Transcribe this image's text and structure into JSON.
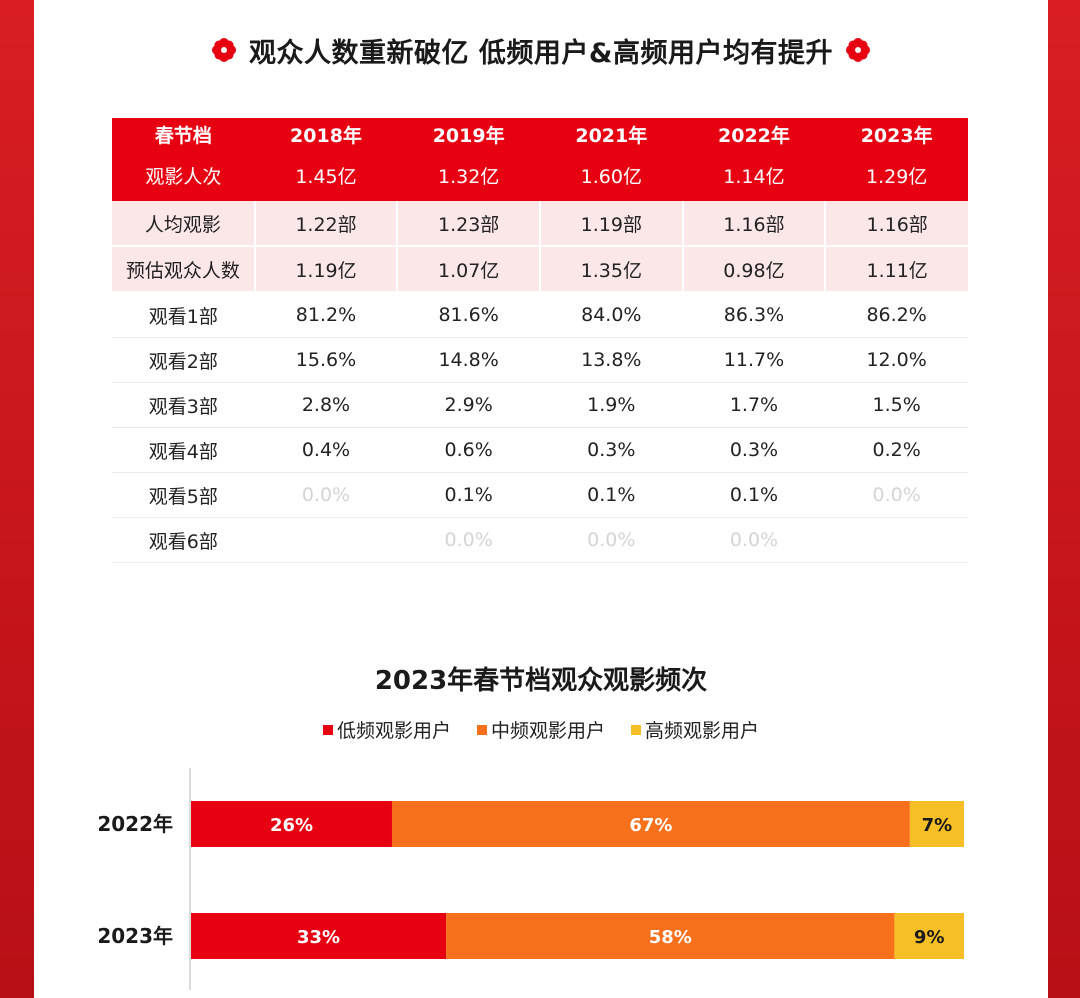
{
  "title": "观众人数重新破亿 低频用户&高频用户均有提升",
  "colors": {
    "red": "#e60012",
    "orange": "#f7711d",
    "yellow": "#f7bf26",
    "pink_row": "#fbe7e8",
    "frame": "#c8161d"
  },
  "table": {
    "header": [
      "春节档",
      "2018年",
      "2019年",
      "2021年",
      "2022年",
      "2023年"
    ],
    "rows": [
      {
        "label": "观影人次",
        "values": [
          "1.45亿",
          "1.32亿",
          "1.60亿",
          "1.14亿",
          "1.29亿"
        ],
        "style": "header"
      },
      {
        "label": "人均观影",
        "values": [
          "1.22部",
          "1.23部",
          "1.19部",
          "1.16部",
          "1.16部"
        ],
        "style": "pink"
      },
      {
        "label": "预估观众人数",
        "values": [
          "1.19亿",
          "1.07亿",
          "1.35亿",
          "0.98亿",
          "1.11亿"
        ],
        "style": "pink"
      },
      {
        "label": "观看1部",
        "values": [
          "81.2%",
          "81.6%",
          "84.0%",
          "86.3%",
          "86.2%"
        ],
        "style": "plain"
      },
      {
        "label": "观看2部",
        "values": [
          "15.6%",
          "14.8%",
          "13.8%",
          "11.7%",
          "12.0%"
        ],
        "style": "plain"
      },
      {
        "label": "观看3部",
        "values": [
          "2.8%",
          "2.9%",
          "1.9%",
          "1.7%",
          "1.5%"
        ],
        "style": "plain"
      },
      {
        "label": "观看4部",
        "values": [
          "0.4%",
          "0.6%",
          "0.3%",
          "0.3%",
          "0.2%"
        ],
        "style": "plain"
      },
      {
        "label": "观看5部",
        "values": [
          "0.0%",
          "0.1%",
          "0.1%",
          "0.1%",
          "0.0%"
        ],
        "faint": [
          0,
          4
        ],
        "style": "plain"
      },
      {
        "label": "观看6部",
        "values": [
          "",
          "0.0%",
          "0.0%",
          "0.0%",
          ""
        ],
        "faint": [
          1,
          2,
          3
        ],
        "style": "plain"
      }
    ]
  },
  "chart_data": {
    "type": "bar",
    "orientation": "horizontal",
    "stacked": true,
    "title": "2023年春节档观众观影频次",
    "categories": [
      "2022年",
      "2023年"
    ],
    "series": [
      {
        "name": "低频观影用户",
        "values": [
          26,
          33
        ],
        "labels": [
          "26%",
          "33%"
        ],
        "color": "#e60012"
      },
      {
        "name": "中频观影用户",
        "values": [
          67,
          58
        ],
        "labels": [
          "67%",
          "58%"
        ],
        "color": "#f7711d"
      },
      {
        "name": "高频观影用户",
        "values": [
          7,
          9
        ],
        "labels": [
          "7%",
          "9%"
        ],
        "color": "#f7bf26"
      }
    ],
    "xlim": [
      0,
      100
    ],
    "legend": "top-center",
    "grid": false
  }
}
